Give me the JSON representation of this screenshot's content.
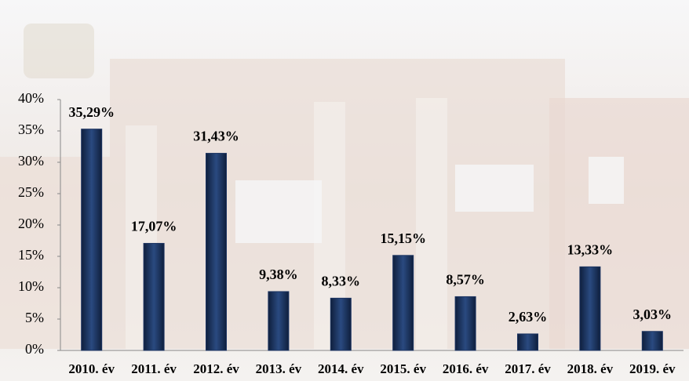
{
  "chart_data": {
    "type": "bar",
    "categories": [
      "2010. év",
      "2011. év",
      "2012. év",
      "2013. év",
      "2014. év",
      "2015. év",
      "2016. év",
      "2017. év",
      "2018. év",
      "2019. év"
    ],
    "values": [
      35.29,
      17.07,
      31.43,
      9.38,
      8.33,
      15.15,
      8.57,
      2.63,
      13.33,
      3.03
    ],
    "value_labels": [
      "35,29%",
      "17,07%",
      "31,43%",
      "9,38%",
      "8,33%",
      "15,15%",
      "8,57%",
      "2,63%",
      "13,33%",
      "3,03%"
    ],
    "color": "#1c3461",
    "ylim": [
      0,
      40
    ],
    "yticks": [
      {
        "value": 0,
        "label": "0%"
      },
      {
        "value": 5,
        "label": "5%"
      },
      {
        "value": 10,
        "label": "10%"
      },
      {
        "value": 15,
        "label": "15%"
      },
      {
        "value": 20,
        "label": "20%"
      },
      {
        "value": 25,
        "label": "25%"
      },
      {
        "value": 30,
        "label": "30%"
      },
      {
        "value": 35,
        "label": "35%"
      },
      {
        "value": 40,
        "label": "40%"
      }
    ],
    "grid": false
  }
}
